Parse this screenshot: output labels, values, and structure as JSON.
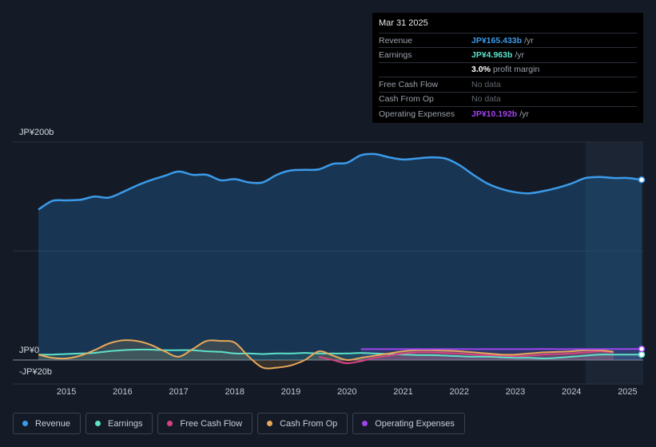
{
  "tooltip": {
    "date": "Mar 31 2025",
    "rows": [
      {
        "label": "Revenue",
        "value": "JP¥165.433b",
        "unit": "/yr",
        "color": "#3b9bea"
      },
      {
        "label": "Earnings",
        "value": "JP¥4.963b",
        "unit": "/yr",
        "color": "#5ee1c8"
      },
      {
        "label": "",
        "value": "3.0%",
        "unit": "profit margin",
        "color": "#ffffff"
      },
      {
        "label": "Free Cash Flow",
        "value": "No data",
        "unit": "",
        "color": ""
      },
      {
        "label": "Cash From Op",
        "value": "No data",
        "unit": "",
        "color": ""
      },
      {
        "label": "Operating Expenses",
        "value": "JP¥10.192b",
        "unit": "/yr",
        "color": "#a044ee"
      }
    ]
  },
  "legend": [
    {
      "label": "Revenue",
      "color": "#3b9bea"
    },
    {
      "label": "Earnings",
      "color": "#5ee1c8"
    },
    {
      "label": "Free Cash Flow",
      "color": "#d6437f"
    },
    {
      "label": "Cash From Op",
      "color": "#e8a85a"
    },
    {
      "label": "Operating Expenses",
      "color": "#a044ee"
    }
  ],
  "chart_data": {
    "type": "area",
    "y_tick_labels": [
      "JP¥200b",
      "JP¥0",
      "-JP¥20b"
    ],
    "x_tick_labels": [
      "2015",
      "2016",
      "2017",
      "2018",
      "2019",
      "2020",
      "2021",
      "2022",
      "2023",
      "2024",
      "2025"
    ],
    "ylim": [
      -20,
      200
    ],
    "xlim": [
      2014.5,
      2025.25
    ],
    "highlight_from": 2024.25,
    "grid": true,
    "series": [
      {
        "name": "Revenue",
        "color": "#3b9bea",
        "points": [
          [
            2014.5,
            138
          ],
          [
            2014.75,
            146
          ],
          [
            2015.0,
            146.5
          ],
          [
            2015.25,
            147
          ],
          [
            2015.5,
            150
          ],
          [
            2015.75,
            149
          ],
          [
            2016.0,
            154
          ],
          [
            2016.25,
            160
          ],
          [
            2016.5,
            165
          ],
          [
            2016.75,
            169
          ],
          [
            2017.0,
            173
          ],
          [
            2017.25,
            170
          ],
          [
            2017.5,
            170
          ],
          [
            2017.75,
            165
          ],
          [
            2018.0,
            166
          ],
          [
            2018.25,
            163
          ],
          [
            2018.5,
            163
          ],
          [
            2018.75,
            170
          ],
          [
            2019.0,
            174
          ],
          [
            2019.25,
            174.5
          ],
          [
            2019.5,
            175
          ],
          [
            2019.75,
            180
          ],
          [
            2020.0,
            181
          ],
          [
            2020.25,
            188
          ],
          [
            2020.5,
            189
          ],
          [
            2020.75,
            186
          ],
          [
            2021.0,
            184
          ],
          [
            2021.25,
            185
          ],
          [
            2021.5,
            186
          ],
          [
            2021.75,
            185
          ],
          [
            2022.0,
            179
          ],
          [
            2022.25,
            170
          ],
          [
            2022.5,
            162
          ],
          [
            2022.75,
            157
          ],
          [
            2023.0,
            154
          ],
          [
            2023.25,
            153
          ],
          [
            2023.5,
            155
          ],
          [
            2023.75,
            158
          ],
          [
            2024.0,
            162
          ],
          [
            2024.25,
            167
          ],
          [
            2024.5,
            168
          ],
          [
            2024.75,
            167
          ],
          [
            2025.0,
            167
          ],
          [
            2025.25,
            165.4
          ]
        ]
      },
      {
        "name": "Earnings",
        "color": "#5ee1c8",
        "points": [
          [
            2014.5,
            5
          ],
          [
            2014.75,
            5
          ],
          [
            2015.0,
            5.5
          ],
          [
            2015.25,
            6
          ],
          [
            2015.5,
            6.5
          ],
          [
            2015.75,
            8
          ],
          [
            2016.0,
            9
          ],
          [
            2016.25,
            9.5
          ],
          [
            2016.5,
            9.5
          ],
          [
            2016.75,
            9
          ],
          [
            2017.0,
            9
          ],
          [
            2017.25,
            9
          ],
          [
            2017.5,
            8
          ],
          [
            2017.75,
            7.5
          ],
          [
            2018.0,
            6
          ],
          [
            2018.25,
            6
          ],
          [
            2018.5,
            5.5
          ],
          [
            2018.75,
            6
          ],
          [
            2019.0,
            6
          ],
          [
            2019.25,
            6.5
          ],
          [
            2019.5,
            6
          ],
          [
            2019.75,
            6
          ],
          [
            2020.0,
            6
          ],
          [
            2020.25,
            6.5
          ],
          [
            2020.5,
            6
          ],
          [
            2020.75,
            5.5
          ],
          [
            2021.0,
            5
          ],
          [
            2021.25,
            4.5
          ],
          [
            2021.5,
            4.5
          ],
          [
            2021.75,
            4
          ],
          [
            2022.0,
            3.5
          ],
          [
            2022.25,
            3
          ],
          [
            2022.5,
            3
          ],
          [
            2022.75,
            2.5
          ],
          [
            2023.0,
            2
          ],
          [
            2023.25,
            2
          ],
          [
            2023.5,
            1.5
          ],
          [
            2023.75,
            2
          ],
          [
            2024.0,
            3
          ],
          [
            2024.25,
            4
          ],
          [
            2024.5,
            5
          ],
          [
            2024.75,
            5
          ],
          [
            2025.0,
            5
          ],
          [
            2025.25,
            5
          ]
        ]
      },
      {
        "name": "Free Cash Flow",
        "color": "#d6437f",
        "points": [
          [
            2019.5,
            3
          ],
          [
            2019.75,
            0
          ],
          [
            2020.0,
            -3
          ],
          [
            2020.25,
            -1
          ],
          [
            2020.5,
            2
          ],
          [
            2020.75,
            4
          ],
          [
            2021.0,
            6
          ],
          [
            2021.25,
            7
          ],
          [
            2021.5,
            7
          ],
          [
            2021.75,
            6.5
          ],
          [
            2022.0,
            6
          ],
          [
            2022.25,
            5
          ],
          [
            2022.5,
            4.5
          ],
          [
            2022.75,
            4
          ],
          [
            2023.0,
            3.5
          ],
          [
            2023.25,
            4
          ],
          [
            2023.5,
            5
          ],
          [
            2023.75,
            5.5
          ],
          [
            2024.0,
            6
          ],
          [
            2024.25,
            7
          ],
          [
            2024.5,
            8
          ],
          [
            2024.75,
            7
          ]
        ]
      },
      {
        "name": "Cash From Op",
        "color": "#e8a85a",
        "points": [
          [
            2014.5,
            5
          ],
          [
            2014.75,
            2
          ],
          [
            2015.0,
            1.5
          ],
          [
            2015.25,
            4
          ],
          [
            2015.5,
            9
          ],
          [
            2015.75,
            15
          ],
          [
            2016.0,
            18
          ],
          [
            2016.25,
            17.5
          ],
          [
            2016.5,
            14
          ],
          [
            2016.75,
            8
          ],
          [
            2017.0,
            3
          ],
          [
            2017.25,
            10
          ],
          [
            2017.5,
            17.5
          ],
          [
            2017.75,
            17.5
          ],
          [
            2018.0,
            16
          ],
          [
            2018.25,
            3
          ],
          [
            2018.5,
            -7
          ],
          [
            2018.75,
            -7
          ],
          [
            2019.0,
            -5
          ],
          [
            2019.25,
            0
          ],
          [
            2019.5,
            8
          ],
          [
            2019.75,
            4
          ],
          [
            2020.0,
            0
          ],
          [
            2020.25,
            2
          ],
          [
            2020.5,
            4
          ],
          [
            2020.75,
            6
          ],
          [
            2021.0,
            8
          ],
          [
            2021.25,
            9
          ],
          [
            2021.5,
            9
          ],
          [
            2021.75,
            8.5
          ],
          [
            2022.0,
            8
          ],
          [
            2022.25,
            7
          ],
          [
            2022.5,
            6
          ],
          [
            2022.75,
            5
          ],
          [
            2023.0,
            5
          ],
          [
            2023.25,
            6
          ],
          [
            2023.5,
            7
          ],
          [
            2023.75,
            7.5
          ],
          [
            2024.0,
            8
          ],
          [
            2024.25,
            9
          ],
          [
            2024.5,
            9
          ],
          [
            2024.75,
            7.5
          ]
        ]
      },
      {
        "name": "Operating Expenses",
        "color": "#a044ee",
        "points": [
          [
            2020.25,
            10
          ],
          [
            2020.5,
            10
          ],
          [
            2020.75,
            10
          ],
          [
            2021.0,
            10
          ],
          [
            2021.25,
            10
          ],
          [
            2021.5,
            10
          ],
          [
            2021.75,
            10
          ],
          [
            2022.0,
            10
          ],
          [
            2022.25,
            10
          ],
          [
            2022.5,
            10
          ],
          [
            2022.75,
            10
          ],
          [
            2023.0,
            10
          ],
          [
            2023.25,
            10
          ],
          [
            2023.5,
            10.2
          ],
          [
            2023.75,
            10
          ],
          [
            2024.0,
            10
          ],
          [
            2024.25,
            10
          ],
          [
            2024.5,
            10
          ],
          [
            2024.75,
            10.1
          ],
          [
            2025.0,
            10.1
          ],
          [
            2025.25,
            10.192
          ]
        ]
      }
    ]
  }
}
